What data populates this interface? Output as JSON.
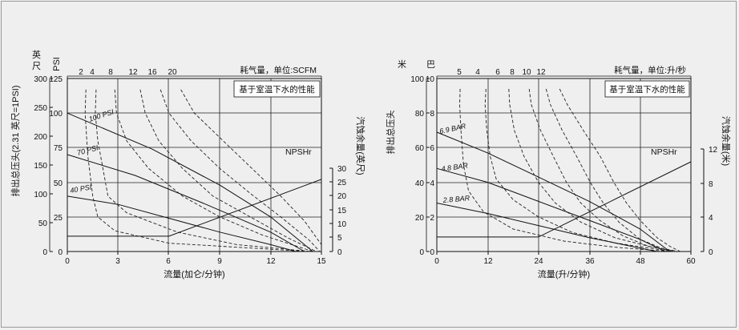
{
  "chart_data": [
    {
      "type": "line",
      "x_label": "流量(加仑/分钟)",
      "x_ticks": [
        "0",
        "3",
        "6",
        "9",
        "12",
        "15"
      ],
      "xlim": [
        0,
        15
      ],
      "left_axis_a": {
        "title_chars": [
          "英",
          "尺"
        ],
        "ticks": [
          "300",
          "250",
          "200",
          "150",
          "100",
          "50",
          "0"
        ],
        "ylim": [
          0,
          300
        ]
      },
      "left_axis_b": {
        "title": "PSI",
        "ticks": [
          "125",
          "100",
          "75",
          "50",
          "25",
          "0"
        ],
        "ylim": [
          0,
          125
        ]
      },
      "y_label": "排出总压头(2.31 英尺=1PSI)",
      "right_axis": {
        "title": "汽蚀余量(英尺)",
        "ticks": [
          "30",
          "25",
          "20",
          "15",
          "10",
          "5",
          "0"
        ],
        "ylim": [
          0,
          30
        ]
      },
      "top_axis": {
        "title": "耗气量，单位:SCFM",
        "ticks": [
          "2",
          "4",
          "8",
          "12",
          "16",
          "20"
        ]
      },
      "note": "基于室温下水的性能",
      "npsh_label": "NPSHr",
      "series": [
        {
          "name": "100 PSI",
          "points": [
            [
              0,
              100
            ],
            [
              5,
              74
            ],
            [
              9,
              48
            ],
            [
              12,
              25
            ],
            [
              14.5,
              0
            ]
          ]
        },
        {
          "name": "70 PSI",
          "points": [
            [
              0,
              70
            ],
            [
              4,
              55
            ],
            [
              8,
              35
            ],
            [
              12,
              14
            ],
            [
              14,
              0
            ]
          ]
        },
        {
          "name": "40 PSI",
          "points": [
            [
              0,
              40
            ],
            [
              3,
              34
            ],
            [
              6,
              24
            ],
            [
              9,
              14
            ],
            [
              12,
              5
            ],
            [
              13.5,
              0
            ]
          ]
        },
        {
          "name": "NPSHr",
          "points": [
            [
              0,
              5.5
            ],
            [
              6,
              5.5
            ],
            [
              15,
              26
            ]
          ]
        }
      ],
      "air_curves": [
        {
          "scfm": "2",
          "points": [
            [
              1.1,
              117
            ],
            [
              1.05,
              100
            ],
            [
              1.2,
              70
            ],
            [
              1.5,
              40
            ],
            [
              1.8,
              25
            ],
            [
              2.8,
              15
            ],
            [
              6,
              6
            ],
            [
              11.5,
              2
            ],
            [
              14.2,
              0
            ]
          ]
        },
        {
          "scfm": "4",
          "points": [
            [
              1.7,
              117
            ],
            [
              1.65,
              100
            ],
            [
              1.8,
              80
            ],
            [
              2.1,
              60
            ],
            [
              2.4,
              40
            ],
            [
              3.5,
              28
            ],
            [
              6.5,
              14
            ],
            [
              10,
              5
            ],
            [
              14.4,
              0
            ]
          ]
        },
        {
          "scfm": "8",
          "points": [
            [
              2.8,
              117
            ],
            [
              2.9,
              100
            ],
            [
              3.5,
              80
            ],
            [
              4.8,
              60
            ],
            [
              6.8,
              40
            ],
            [
              9,
              25
            ],
            [
              11.5,
              12
            ],
            [
              14.5,
              0
            ]
          ]
        },
        {
          "scfm": "12",
          "points": [
            [
              4.3,
              117
            ],
            [
              4.6,
              100
            ],
            [
              5.4,
              80
            ],
            [
              6.8,
              60
            ],
            [
              8.6,
              40
            ],
            [
              10.8,
              25
            ],
            [
              13,
              10
            ],
            [
              14.7,
              0
            ]
          ]
        },
        {
          "scfm": "16",
          "points": [
            [
              5.5,
              117
            ],
            [
              6,
              100
            ],
            [
              7.3,
              80
            ],
            [
              9,
              60
            ],
            [
              10.8,
              42
            ],
            [
              12.6,
              25
            ],
            [
              14.3,
              8
            ],
            [
              14.9,
              0
            ]
          ]
        },
        {
          "scfm": "20",
          "points": [
            [
              6.7,
              117
            ],
            [
              7.5,
              100
            ],
            [
              9.2,
              80
            ],
            [
              10.9,
              60
            ],
            [
              12.6,
              40
            ],
            [
              14,
              22
            ],
            [
              15,
              5
            ]
          ]
        }
      ]
    },
    {
      "type": "line",
      "x_label": "流量(升/分钟)",
      "x_ticks": [
        "0",
        "12",
        "24",
        "36",
        "48",
        "60"
      ],
      "xlim": [
        0,
        60
      ],
      "left_axis_a": {
        "title": "米",
        "ticks": [
          "100",
          "80",
          "60",
          "40",
          "20",
          "0"
        ],
        "ylim": [
          0,
          100
        ]
      },
      "left_axis_b": {
        "title": "巴",
        "ticks": [
          "10",
          "8",
          "6",
          "4",
          "2",
          "0"
        ],
        "ylim": [
          0,
          10
        ]
      },
      "y_label": "排出总压头",
      "right_axis": {
        "title": "汽蚀余量(米)",
        "ticks": [
          "12",
          "8",
          "4",
          "0"
        ],
        "ylim": [
          0,
          12
        ]
      },
      "top_axis": {
        "title": "耗气量，单位:升/秒",
        "ticks": [
          "5",
          "4",
          "6",
          "8",
          "10",
          "12"
        ]
      },
      "note": "基于室温下水的性能",
      "npsh_label": "NPSHr",
      "series": [
        {
          "name": "6.9 BAR",
          "points": [
            [
              0,
              6.9
            ],
            [
              12,
              5.7
            ],
            [
              24,
              4.3
            ],
            [
              36,
              2.9
            ],
            [
              48,
              1.3
            ],
            [
              55,
              0
            ]
          ]
        },
        {
          "name": "4.8 BAR",
          "points": [
            [
              0,
              4.8
            ],
            [
              12,
              4
            ],
            [
              24,
              2.9
            ],
            [
              36,
              1.8
            ],
            [
              48,
              0.7
            ],
            [
              54,
              0
            ]
          ]
        },
        {
          "name": "2.8 BAR",
          "points": [
            [
              0,
              2.8
            ],
            [
              12,
              2.2
            ],
            [
              24,
              1.5
            ],
            [
              36,
              0.8
            ],
            [
              48,
              0.2
            ],
            [
              52,
              0
            ]
          ]
        },
        {
          "name": "NPSHr",
          "points": [
            [
              0,
              1.7
            ],
            [
              24,
              1.7
            ],
            [
              60,
              10.5
            ]
          ]
        }
      ],
      "air_curves": [
        {
          "scfm": "5",
          "points": [
            [
              5.5,
              9.4
            ],
            [
              5.4,
              8.5
            ],
            [
              5.7,
              7
            ],
            [
              6.3,
              5
            ],
            [
              7.5,
              3.5
            ],
            [
              11,
              2.3
            ],
            [
              18,
              1.3
            ],
            [
              30,
              0.6
            ],
            [
              42,
              0.25
            ],
            [
              55,
              0
            ]
          ]
        },
        {
          "scfm": "4",
          "points": [
            [
              11.6,
              9.4
            ],
            [
              11.4,
              8.5
            ],
            [
              11.8,
              7
            ],
            [
              12.6,
              5.5
            ],
            [
              14,
              4.2
            ],
            [
              18,
              3
            ],
            [
              24,
              2
            ],
            [
              32,
              1.1
            ],
            [
              42,
              0.5
            ],
            [
              55.5,
              0
            ]
          ]
        },
        {
          "scfm": "6",
          "points": [
            [
              17,
              9.4
            ],
            [
              17.2,
              8.5
            ],
            [
              18.3,
              7
            ],
            [
              20.6,
              5.5
            ],
            [
              24,
              4
            ],
            [
              28,
              2.8
            ],
            [
              34,
              1.7
            ],
            [
              42,
              0.8
            ],
            [
              50,
              0.3
            ],
            [
              56,
              0
            ]
          ]
        },
        {
          "scfm": "8",
          "points": [
            [
              21.8,
              9.4
            ],
            [
              22.3,
              8.5
            ],
            [
              24.5,
              7
            ],
            [
              27.5,
              5.5
            ],
            [
              30.6,
              4
            ],
            [
              34,
              2.8
            ],
            [
              38.5,
              1.8
            ],
            [
              44,
              0.9
            ],
            [
              50,
              0.3
            ],
            [
              56.5,
              0
            ]
          ]
        },
        {
          "scfm": "10",
          "points": [
            [
              25.8,
              9.4
            ],
            [
              26.8,
              8.5
            ],
            [
              29.6,
              7
            ],
            [
              33,
              5.5
            ],
            [
              36.2,
              4
            ],
            [
              39.3,
              2.8
            ],
            [
              43,
              1.7
            ],
            [
              48,
              0.7
            ],
            [
              53,
              0.2
            ],
            [
              57,
              0
            ]
          ]
        },
        {
          "scfm": "12",
          "points": [
            [
              29,
              9.4
            ],
            [
              30.8,
              8.5
            ],
            [
              34.6,
              7
            ],
            [
              38.6,
              5.5
            ],
            [
              41.8,
              4
            ],
            [
              44.8,
              2.8
            ],
            [
              48,
              1.8
            ],
            [
              52,
              0.8
            ],
            [
              55,
              0.3
            ],
            [
              57.5,
              0
            ]
          ]
        }
      ]
    }
  ]
}
